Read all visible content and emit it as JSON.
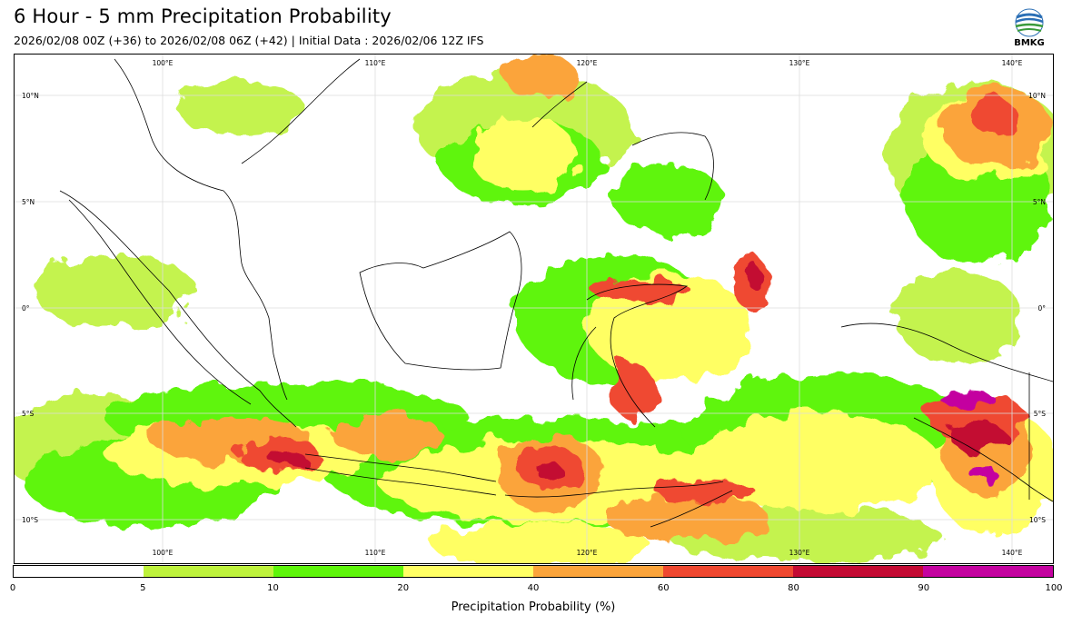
{
  "title": "6 Hour - 5 mm Precipitation Probability",
  "subtitle": "2026/02/08 00Z (+36) to 2026/02/08 06Z (+42) | Initial Data : 2026/02/06 12Z IFS",
  "logo": {
    "text": "BMKG"
  },
  "map": {
    "lon_labels": [
      "100°E",
      "110°E",
      "120°E",
      "130°E",
      "140°E"
    ],
    "lat_labels": [
      "10°N",
      "5°N",
      "0°",
      "5°S",
      "10°S"
    ]
  },
  "colorbar": {
    "title": "Precipitation Probability (%)",
    "ticks": [
      "0",
      "5",
      "10",
      "20",
      "40",
      "60",
      "80",
      "90",
      "100"
    ],
    "colors": [
      "#ffffff",
      "#bef23c",
      "#5ef50b",
      "#ffff64",
      "#fba43b",
      "#ef4830",
      "#c30a33",
      "#c403a0"
    ]
  }
}
